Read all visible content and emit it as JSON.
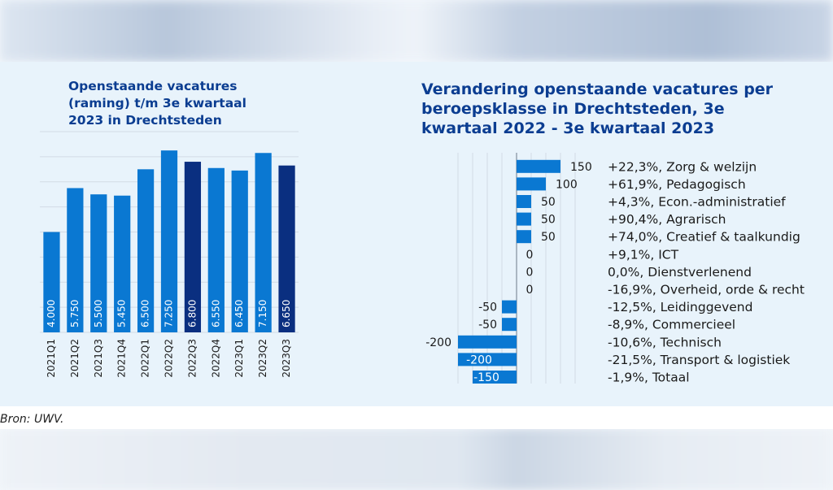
{
  "left_title": "Openstaande vacatures\n(raming) t/m 3e kwartaal\n2023 in Drechtsteden",
  "right_title": "Verandering openstaande vacatures per\nberoepsklasse in Drechtsteden, 3e\nkwartaal 2022 - 3e kwartaal 2023",
  "source": "Bron: UWV.",
  "colors": {
    "bar": "#0a78d2",
    "bar_highlight": "#0a2f80",
    "title": "#0b3d91"
  },
  "chart_data": [
    {
      "type": "bar",
      "title": "Openstaande vacatures (raming) t/m 3e kwartaal 2023 in Drechtsteden",
      "categories": [
        "2021Q1",
        "2021Q2",
        "2021Q3",
        "2021Q4",
        "2022Q1",
        "2022Q2",
        "2022Q3",
        "2022Q4",
        "2023Q1",
        "2023Q2",
        "2023Q3"
      ],
      "values": [
        4000,
        5750,
        5500,
        5450,
        6500,
        7250,
        6800,
        6550,
        6450,
        7150,
        6650
      ],
      "value_labels": [
        "4.000",
        "5.750",
        "5.500",
        "5.450",
        "6.500",
        "7.250",
        "6.800",
        "6.550",
        "6.450",
        "7.150",
        "6.650"
      ],
      "highlight": [
        "2022Q3",
        "2023Q3"
      ],
      "ylim": [
        0,
        8000
      ],
      "grid": true
    },
    {
      "type": "bar",
      "orientation": "horizontal",
      "title": "Verandering openstaande vacatures per beroepsklasse in Drechtsteden, 3e kwartaal 2022 - 3e kwartaal 2023",
      "categories": [
        "+22,3%, Zorg & welzijn",
        "+61,9%, Pedagogisch",
        "+4,3%, Econ.-administratief",
        "+90,4%, Agrarisch",
        "+74,0%, Creatief & taalkundig",
        "+9,1%, ICT",
        "0,0%, Dienstverlenend",
        "-16,9%, Overheid, orde & recht",
        "-12,5%, Leidinggevend",
        "-8,9%, Commercieel",
        "-10,6%, Technisch",
        "-21,5%, Transport & logistiek",
        "-1,9%, Totaal"
      ],
      "values": [
        150,
        100,
        50,
        50,
        50,
        0,
        0,
        0,
        -50,
        -50,
        -200,
        -200,
        -150
      ],
      "value_labels": [
        "150",
        "100",
        "50",
        "50",
        "50",
        "0",
        "0",
        "0",
        "-50",
        "-50",
        "-200",
        "-200",
        "-150"
      ],
      "xlim": [
        -200,
        200
      ],
      "grid": true
    }
  ]
}
